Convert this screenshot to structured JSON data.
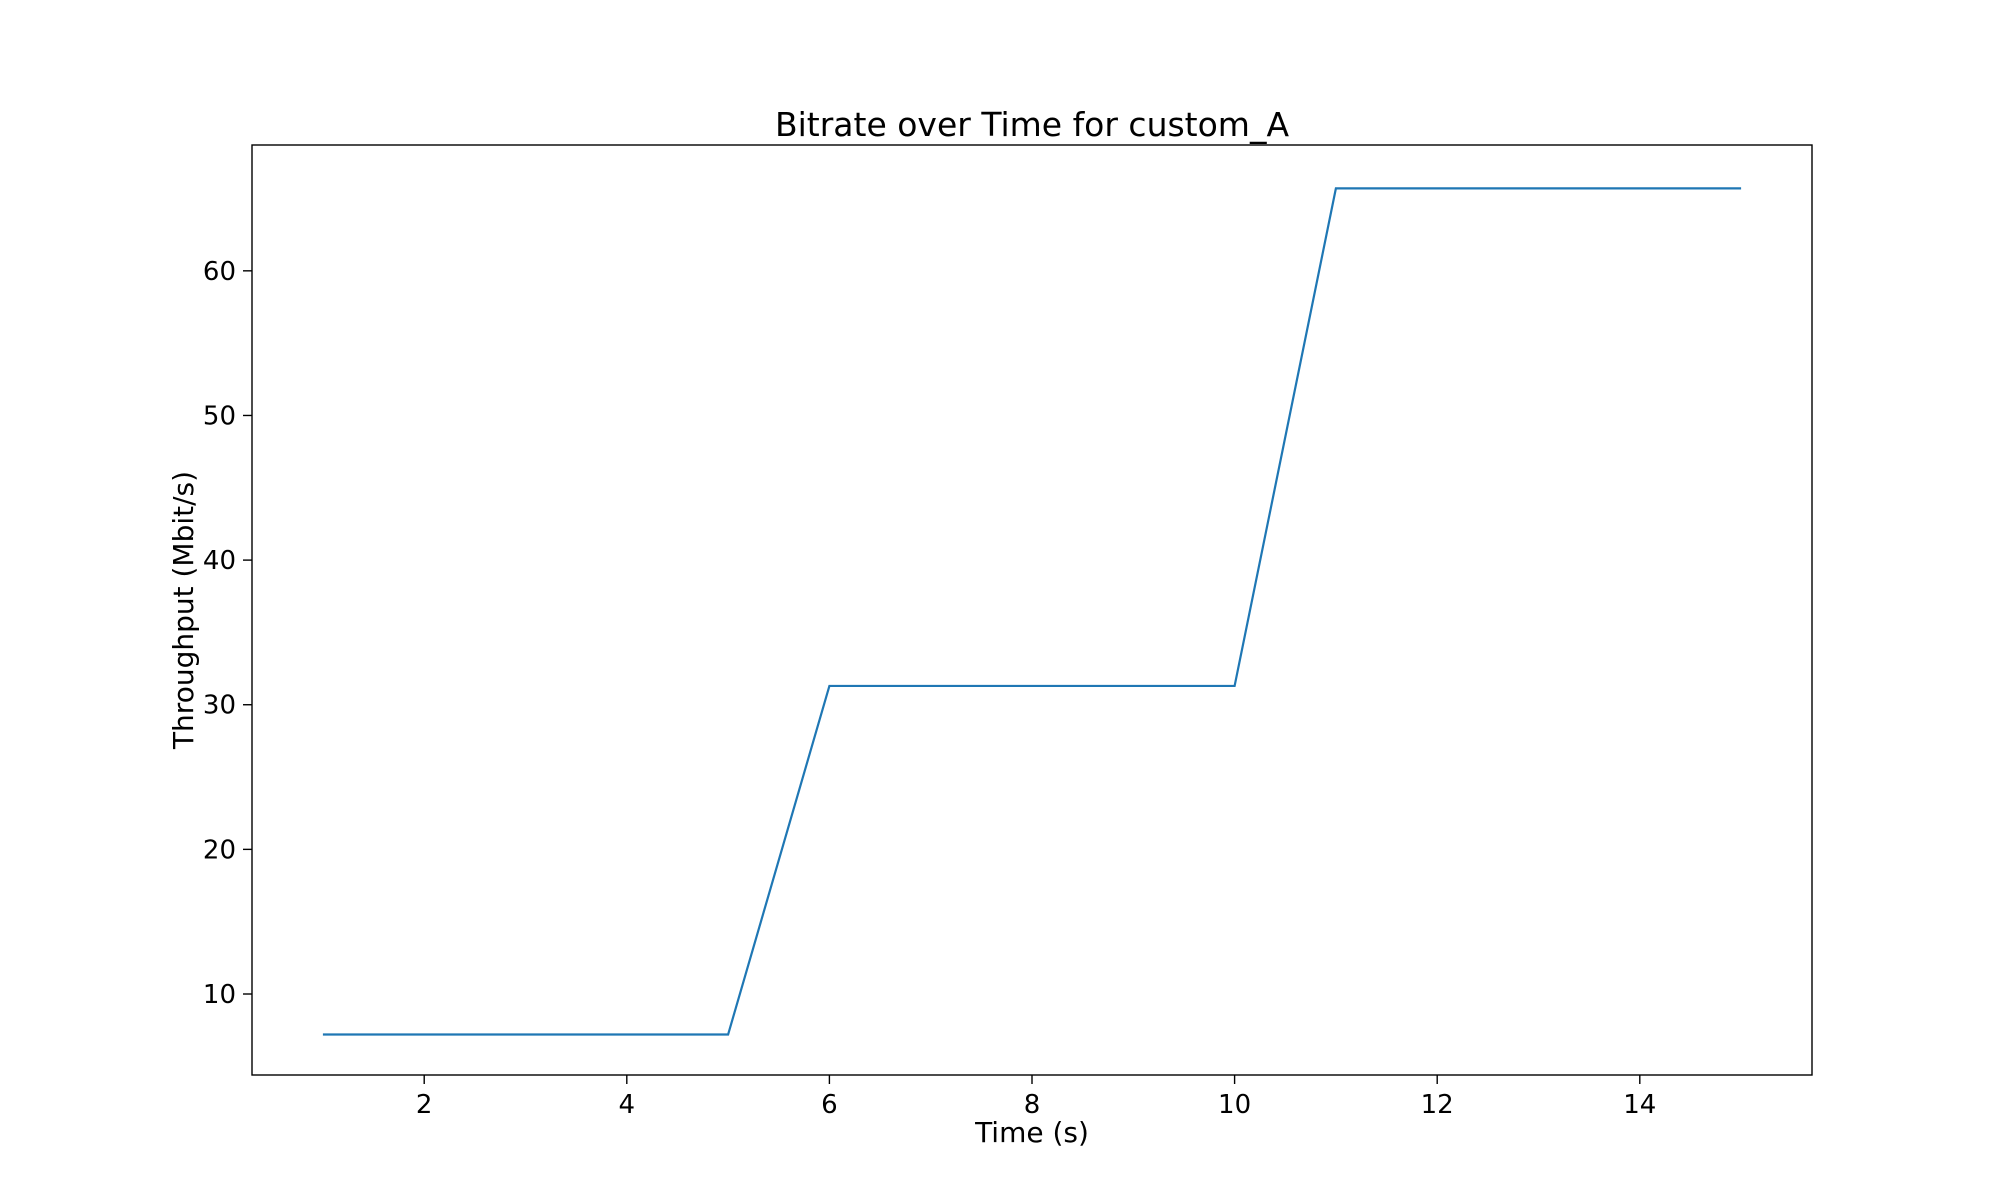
{
  "chart_data": {
    "type": "line",
    "title": "Bitrate over Time for custom_A",
    "xlabel": "Time (s)",
    "ylabel": "Throughput (Mbit/s)",
    "xlim": [
      0.3,
      15.7
    ],
    "ylim": [
      4.4,
      68.7
    ],
    "xticks": [
      2,
      4,
      6,
      8,
      10,
      12,
      14
    ],
    "yticks": [
      10,
      20,
      30,
      40,
      50,
      60
    ],
    "grid": false,
    "series": [
      {
        "color": "#1f77b4",
        "x": [
          1,
          2,
          3,
          4,
          5,
          6,
          7,
          8,
          9,
          10,
          11,
          12,
          13,
          14,
          15
        ],
        "y": [
          7.2,
          7.2,
          7.2,
          7.2,
          7.2,
          31.3,
          31.3,
          31.3,
          31.3,
          31.3,
          65.7,
          65.7,
          65.7,
          65.7,
          65.7
        ]
      }
    ]
  }
}
